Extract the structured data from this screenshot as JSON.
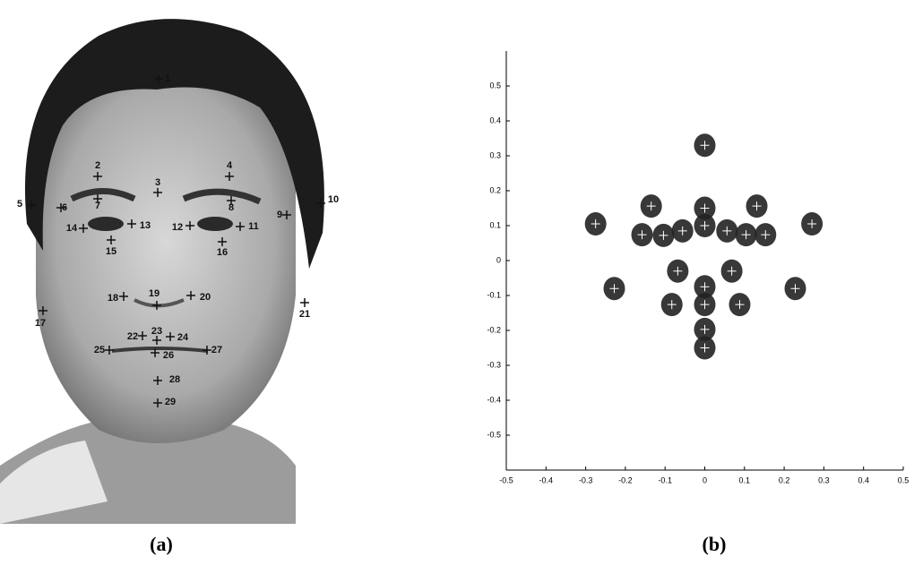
{
  "panels": {
    "a": {
      "caption": "(a)",
      "landmarks": [
        "1",
        "2",
        "3",
        "4",
        "5",
        "6",
        "7",
        "8",
        "9",
        "10",
        "11",
        "12",
        "13",
        "14",
        "15",
        "16",
        "17",
        "18",
        "19",
        "20",
        "21",
        "22",
        "23",
        "24",
        "25",
        "26",
        "27",
        "28",
        "29"
      ]
    },
    "b": {
      "caption": "(b)"
    }
  },
  "chart_data": {
    "type": "scatter",
    "x": [
      0,
      -0.275,
      0.27,
      -0.135,
      0.131,
      0,
      -0.158,
      -0.104,
      -0.056,
      0,
      0.056,
      0.104,
      0.153,
      -0.228,
      0.228,
      -0.068,
      0.068,
      -0.083,
      0.088,
      0,
      0,
      0,
      0
    ],
    "series": [
      {
        "color": "#222222",
        "values": [
          0.33,
          0.105,
          0.105,
          0.156,
          0.156,
          0.15,
          0.074,
          0.072,
          0.085,
          0.1,
          0.085,
          0.074,
          0.074,
          -0.08,
          -0.08,
          -0.03,
          -0.03,
          -0.126,
          -0.126,
          -0.075,
          -0.126,
          -0.197,
          -0.25
        ]
      }
    ],
    "xlim": [
      -0.5,
      0.5
    ],
    "ylim": [
      -0.6,
      0.6
    ],
    "xticks": [
      -0.5,
      -0.4,
      -0.3,
      -0.2,
      -0.1,
      0,
      0.1,
      0.2,
      0.3,
      0.4,
      0.5
    ],
    "yticks": [
      -0.5,
      -0.4,
      -0.3,
      -0.2,
      -0.1,
      0,
      0.1,
      0.2,
      0.3,
      0.4,
      0.5
    ]
  }
}
